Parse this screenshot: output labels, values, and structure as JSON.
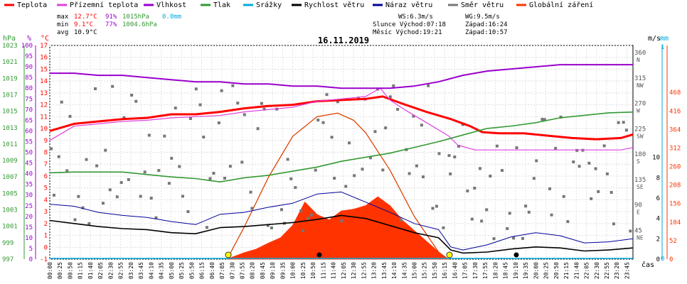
{
  "chart_data": {
    "type": "line",
    "title": "16.11.2019",
    "legend": [
      {
        "label": "Teplota",
        "color": "#ff0000"
      },
      {
        "label": "Přízemní teplota",
        "color": "#e040e0"
      },
      {
        "label": "Vlhkost",
        "color": "#9900cc"
      },
      {
        "label": "Tlak",
        "color": "#339933"
      },
      {
        "label": "Srážky",
        "color": "#00aadd"
      },
      {
        "label": "Rychlost větru",
        "color": "#000000"
      },
      {
        "label": "Náraz větru",
        "color": "#000099"
      },
      {
        "label": "Směr větru",
        "color": "#777777"
      },
      {
        "label": "Globální záření",
        "color": "#ff3300"
      }
    ],
    "stats": {
      "max_label": "max",
      "max_temp": "12.7°C",
      "max_hum": "91%",
      "max_press": "1015hPa",
      "max_rain": "0.0mm",
      "min_label": "min",
      "min_temp": "9.1°C",
      "min_hum": "77%",
      "min_press": "1004.6hPa",
      "avg_label": "avg",
      "avg_temp": "10.9°C"
    },
    "wind": {
      "ws": "WS:6.3m/s",
      "wg": "WG:9.5m/s"
    },
    "sun": {
      "rise": "Slunce Východ:07:18",
      "set": "Západ:16:24"
    },
    "moon": {
      "rise": "Měsíc  Východ:19:21",
      "set": "Západ:10:57"
    },
    "axes": {
      "hpa": {
        "unit": "hPa",
        "ticks": [
          "997",
          "999",
          "1001",
          "1003",
          "1005",
          "1007",
          "1009",
          "1011",
          "1013",
          "1015",
          "1017",
          "1019",
          "1021",
          "1023"
        ],
        "range": [
          997,
          1023
        ]
      },
      "pct": {
        "unit": "%",
        "ticks": [
          "0",
          "5",
          "10",
          "15",
          "20",
          "25",
          "30",
          "35",
          "40",
          "45",
          "50",
          "55",
          "60",
          "65",
          "70",
          "75",
          "80",
          "85",
          "90",
          "95",
          "100"
        ],
        "range": [
          0,
          100
        ]
      },
      "temp": {
        "unit": "°C",
        "ticks": [
          "-1",
          "0",
          "1",
          "2",
          "3",
          "4",
          "5",
          "6",
          "7",
          "8",
          "9",
          "10",
          "11",
          "12",
          "13",
          "14",
          "15",
          "16",
          "17"
        ],
        "range": [
          -1,
          17
        ]
      },
      "dir": {
        "unit": "m/s",
        "ticks": [
          {
            "deg": 45,
            "label": "45",
            "sub": "NE"
          },
          {
            "deg": 90,
            "label": "90",
            "sub": "E"
          },
          {
            "deg": 135,
            "label": "135",
            "sub": "SE"
          },
          {
            "deg": 180,
            "label": "180",
            "sub": "S"
          },
          {
            "deg": 225,
            "label": "225",
            "sub": "SW"
          },
          {
            "deg": 270,
            "label": "270",
            "sub": "W"
          },
          {
            "deg": 315,
            "label": "315",
            "sub": "NW"
          },
          {
            "deg": 360,
            "label": "360",
            "sub": "N"
          }
        ]
      },
      "ms": {
        "ticks": [
          "0",
          "2",
          "4",
          "6",
          "8",
          "10"
        ]
      },
      "mm": {
        "unit": "mm",
        "ticks": [
          "0",
          "1"
        ]
      },
      "wm2": {
        "ticks": [
          "0",
          "52",
          "104",
          "156",
          "208",
          "260",
          "312",
          "364",
          "416",
          "468"
        ]
      },
      "x_unit": "čas",
      "x_ticks": [
        "00:00",
        "00:25",
        "00:50",
        "01:15",
        "01:40",
        "02:05",
        "02:30",
        "02:55",
        "03:20",
        "03:45",
        "04:10",
        "04:35",
        "05:00",
        "05:25",
        "05:50",
        "06:15",
        "06:40",
        "07:05",
        "07:30",
        "07:55",
        "08:20",
        "08:45",
        "09:10",
        "09:35",
        "10:00",
        "10:25",
        "10:50",
        "11:15",
        "11:40",
        "12:05",
        "12:30",
        "12:55",
        "13:20",
        "13:45",
        "14:10",
        "14:35",
        "15:00",
        "15:25",
        "15:50",
        "16:15",
        "16:40",
        "17:05",
        "17:30",
        "17:55",
        "18:20",
        "18:45",
        "19:10",
        "19:35",
        "20:00",
        "20:25",
        "20:50",
        "21:15",
        "21:40",
        "22:05",
        "22:30",
        "22:55",
        "23:20",
        "23:45"
      ]
    },
    "series": [
      {
        "name": "Teplota",
        "axis": "temp",
        "x_hours": [
          0,
          1,
          2,
          3,
          4,
          5,
          6,
          7,
          8,
          9,
          10,
          11,
          12,
          13,
          13.7,
          14.5,
          15.5,
          16.5,
          17.3,
          17.8,
          18.5,
          19.5,
          20.5,
          21.5,
          22.5,
          23.5,
          24
        ],
        "values": [
          9.8,
          10.4,
          10.6,
          10.8,
          10.9,
          11.2,
          11.2,
          11.4,
          11.7,
          11.9,
          12.0,
          12.3,
          12.4,
          12.5,
          12.7,
          12.1,
          11.4,
          10.8,
          10.2,
          9.7,
          9.6,
          9.6,
          9.4,
          9.2,
          9.1,
          9.2,
          9.5
        ]
      },
      {
        "name": "Přízemní teplota",
        "axis": "temp",
        "x_hours": [
          0,
          1,
          2,
          3,
          4,
          5,
          6,
          7,
          8,
          9,
          10,
          11,
          12,
          13,
          13.6,
          14,
          14.6,
          15.5,
          16.4,
          16.8,
          17.5,
          18.5,
          19.5,
          20.5,
          21.5,
          22.5,
          23.5,
          24
        ],
        "values": [
          9.0,
          10.2,
          10.4,
          10.6,
          10.7,
          10.9,
          11.0,
          11.1,
          11.4,
          11.6,
          11.8,
          12.3,
          12.5,
          12.7,
          13.4,
          12.4,
          11.6,
          10.5,
          9.4,
          8.6,
          8.2,
          8.2,
          8.2,
          8.2,
          8.2,
          8.2,
          8.2,
          8.4
        ]
      },
      {
        "name": "Vlhkost",
        "axis": "pct",
        "x_hours": [
          0,
          1,
          2,
          3,
          4,
          5,
          6,
          7,
          8,
          9,
          10,
          11,
          12,
          13,
          14,
          15,
          16,
          17,
          18,
          19,
          20,
          21,
          22,
          23,
          24
        ],
        "values": [
          87,
          87,
          86,
          86,
          85,
          84,
          83,
          83,
          82,
          82,
          81,
          81,
          80,
          80,
          80,
          81,
          83,
          86,
          88,
          89,
          90,
          91,
          91,
          91,
          91
        ]
      },
      {
        "name": "Tlak",
        "axis": "hpa",
        "x_hours": [
          0,
          1,
          2,
          3,
          4,
          5,
          6,
          7,
          8,
          9,
          10,
          11,
          12,
          13,
          14,
          15,
          16,
          17,
          18,
          19,
          20,
          21,
          22,
          23,
          24
        ],
        "values": [
          1007.5,
          1007.6,
          1007.6,
          1007.6,
          1007.3,
          1007.0,
          1006.8,
          1006.4,
          1006.9,
          1007.2,
          1007.7,
          1008.2,
          1008.9,
          1009.4,
          1009.9,
          1010.6,
          1011.3,
          1012.1,
          1012.9,
          1013.2,
          1013.6,
          1014.2,
          1014.5,
          1014.8,
          1014.9
        ]
      },
      {
        "name": "Rychlost větru",
        "axis": "ms",
        "x_hours": [
          0,
          1,
          2,
          3,
          4,
          5,
          6,
          7,
          8,
          9,
          10,
          11,
          12,
          13,
          14,
          15,
          16,
          16.5,
          17,
          18,
          19,
          20,
          21,
          22,
          23,
          24
        ],
        "values": [
          3.8,
          3.5,
          3.2,
          3.0,
          2.9,
          2.6,
          2.5,
          3.1,
          3.2,
          3.4,
          3.6,
          3.9,
          4.3,
          4.0,
          3.3,
          2.6,
          2.1,
          0.9,
          0.6,
          0.7,
          1.0,
          1.2,
          1.1,
          0.8,
          0.9,
          1.1
        ]
      },
      {
        "name": "Náraz větru",
        "axis": "ms",
        "x_hours": [
          0,
          1,
          2,
          3,
          4,
          5,
          6,
          7,
          8,
          9,
          10,
          11,
          12,
          13,
          14,
          15,
          16,
          16.5,
          17,
          18,
          19,
          20,
          21,
          22,
          23,
          24
        ],
        "values": [
          5.4,
          5.2,
          4.6,
          4.3,
          4.1,
          3.7,
          3.4,
          4.4,
          4.6,
          5.1,
          5.5,
          6.4,
          6.6,
          5.6,
          4.6,
          3.5,
          2.9,
          1.2,
          0.9,
          1.4,
          2.2,
          2.6,
          2.3,
          1.6,
          1.7,
          2.0
        ]
      },
      {
        "name": "Globální záření",
        "axis": "wm2",
        "x_hours": [
          7.3,
          8,
          8.5,
          9,
          9.5,
          10,
          10.5,
          11,
          11.5,
          12,
          12.5,
          13,
          13.5,
          14,
          14.5,
          15,
          15.5,
          16,
          16.4
        ],
        "values": [
          0,
          18,
          28,
          45,
          60,
          95,
          160,
          125,
          110,
          135,
          140,
          150,
          175,
          150,
          110,
          80,
          50,
          20,
          0
        ]
      }
    ],
    "clear_sky_radiation": {
      "x_hours": [
        7.3,
        8,
        9,
        10,
        11,
        11.85,
        12.5,
        13,
        14,
        15,
        16,
        16.4
      ],
      "values": [
        0,
        90,
        230,
        345,
        400,
        410,
        390,
        355,
        250,
        120,
        20,
        0
      ]
    },
    "wind_direction_scatter": {
      "axis": "dir",
      "note": "points 30–330 deg spread through the day"
    }
  }
}
